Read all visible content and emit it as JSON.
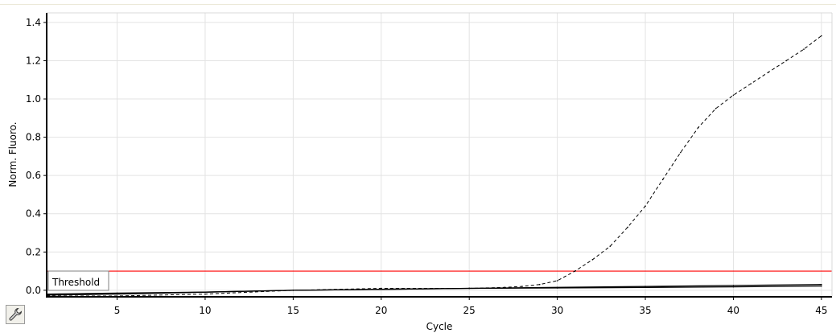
{
  "icons": {
    "tool_button": "wrench-icon"
  },
  "chart_data": {
    "type": "line",
    "xlabel": "Cycle",
    "ylabel": "Norm. Fluoro.",
    "xlim": [
      1,
      45.6
    ],
    "ylim": [
      -0.03,
      1.45
    ],
    "xticks": [
      5,
      10,
      15,
      20,
      25,
      30,
      35,
      40,
      45
    ],
    "yticks": [
      0.0,
      0.2,
      0.4,
      0.6,
      0.8,
      1.0,
      1.2,
      1.4
    ],
    "ytick_labels": [
      "0.0",
      "0.2",
      "0.4",
      "0.6",
      "0.8",
      "1.0",
      "1.2",
      "1.4"
    ],
    "grid": true,
    "threshold": {
      "label": "Threshold",
      "value": 0.1,
      "color": "#ff0000"
    },
    "series": [
      {
        "style": "dashed",
        "color": "#000000",
        "x": [
          1,
          5,
          10,
          15,
          20,
          25,
          27,
          28,
          29,
          30,
          31,
          32,
          33,
          34,
          35,
          36,
          37,
          38,
          39,
          40,
          41,
          42,
          43,
          44,
          45
        ],
        "y": [
          -0.03,
          -0.03,
          -0.02,
          0.0,
          0.01,
          0.01,
          0.015,
          0.02,
          0.03,
          0.05,
          0.1,
          0.16,
          0.23,
          0.33,
          0.44,
          0.58,
          0.72,
          0.85,
          0.95,
          1.02,
          1.08,
          1.14,
          1.2,
          1.26,
          1.33
        ]
      },
      {
        "style": "solid",
        "color": "#000000",
        "x": [
          1,
          5,
          10,
          15,
          20,
          25,
          30,
          35,
          40,
          45
        ],
        "y": [
          -0.02,
          -0.015,
          -0.01,
          0.0,
          0.005,
          0.01,
          0.015,
          0.02,
          0.025,
          0.03
        ]
      },
      {
        "style": "solid",
        "color": "#000000",
        "x": [
          1,
          5,
          10,
          15,
          20,
          25,
          30,
          35,
          40,
          45
        ],
        "y": [
          -0.025,
          -0.02,
          -0.01,
          0.0,
          0.005,
          0.01,
          0.012,
          0.015,
          0.018,
          0.022
        ]
      }
    ]
  }
}
